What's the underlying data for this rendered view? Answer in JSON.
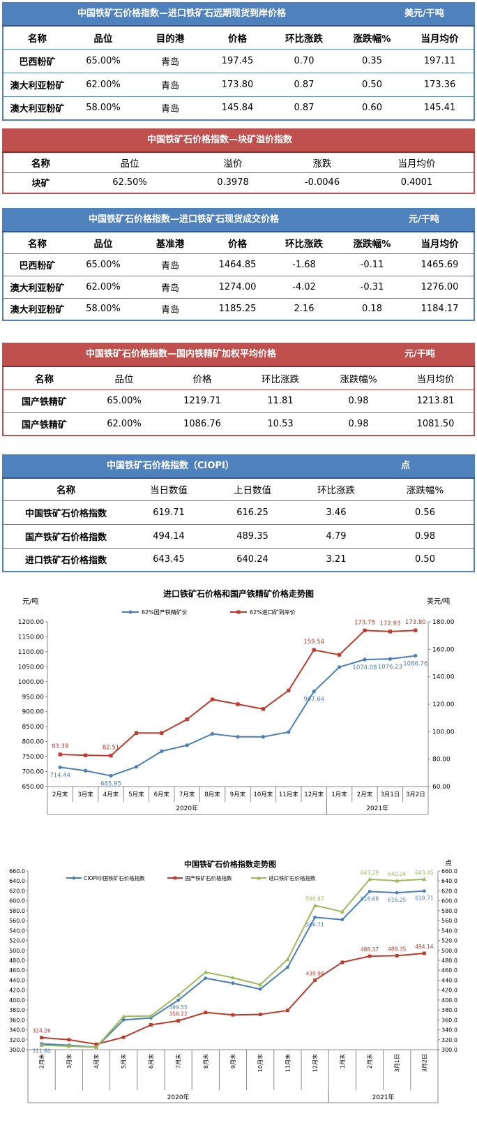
{
  "t1": {
    "title": "中国铁矿石价格指数—进口铁矿石远期现货到岸价格",
    "unit": "美元/干吨",
    "headers": [
      "名称",
      "品位",
      "目的港",
      "价格",
      "环比涨跌",
      "涨跌幅%",
      "当月均价"
    ],
    "rows": [
      [
        "巴西粉矿",
        "65.00%",
        "青岛",
        "197.45",
        "0.70",
        "0.35",
        "197.11"
      ],
      [
        "澳大利亚粉矿",
        "62.00%",
        "青岛",
        "173.80",
        "0.87",
        "0.50",
        "173.36"
      ],
      [
        "澳大利亚粉矿",
        "58.00%",
        "青岛",
        "145.84",
        "0.87",
        "0.60",
        "145.41"
      ]
    ]
  },
  "t2": {
    "title": "中国铁矿石价格指数—块矿溢价指数",
    "headers": [
      "名称",
      "品位",
      "溢价",
      "涨跌",
      "当月均价"
    ],
    "rows": [
      [
        "块矿",
        "62.50%",
        "0.3978",
        "-0.0046",
        "0.4001"
      ]
    ]
  },
  "t3": {
    "title": "中国铁矿石价格指数—进口铁矿石现货成交价格",
    "unit": "元/干吨",
    "headers": [
      "名称",
      "品位",
      "基准港",
      "价格",
      "环比涨跌",
      "涨跌幅%",
      "当月均价"
    ],
    "rows": [
      [
        "巴西粉矿",
        "65.00%",
        "青岛",
        "1464.85",
        "-1.68",
        "-0.11",
        "1465.69"
      ],
      [
        "澳大利亚粉矿",
        "62.00%",
        "青岛",
        "1274.00",
        "-4.02",
        "-0.31",
        "1276.00"
      ],
      [
        "澳大利亚粉矿",
        "58.00%",
        "青岛",
        "1185.25",
        "2.16",
        "0.18",
        "1184.17"
      ]
    ]
  },
  "t4": {
    "title": "中国铁矿石价格指数—国内铁精矿加权平均价格",
    "unit": "元/干吨",
    "headers": [
      "名称",
      "品位",
      "价格",
      "环比涨跌",
      "涨跌幅%",
      "当月均价"
    ],
    "rows": [
      [
        "国产铁精矿",
        "65.00%",
        "1219.71",
        "11.81",
        "0.98",
        "1213.81"
      ],
      [
        "国产铁精矿",
        "62.00%",
        "1086.76",
        "10.53",
        "0.98",
        "1081.50"
      ]
    ]
  },
  "t5": {
    "title": "中国铁矿石价格指数（CIOPI）",
    "unit": "点",
    "headers": [
      "名称",
      "当日数值",
      "上日数值",
      "环比涨跌",
      "涨跌幅%"
    ],
    "rows": [
      [
        "中国铁矿石价格指数",
        "619.71",
        "616.25",
        "3.46",
        "0.56"
      ],
      [
        "国产铁矿石价格指数",
        "494.14",
        "489.35",
        "4.79",
        "0.98"
      ],
      [
        "进口铁矿石价格指数",
        "643.45",
        "640.24",
        "3.21",
        "0.50"
      ]
    ]
  },
  "chart_data": [
    {
      "type": "line",
      "title": "进口铁矿石价格和国产铁精矿价格走势图",
      "ylabel_left": "元/吨",
      "ylabel_right": "美元/吨",
      "ylim_left": [
        650,
        1200
      ],
      "ylim_right": [
        60,
        180
      ],
      "left_ticks": [
        "650.00",
        "700.00",
        "750.00",
        "800.00",
        "850.00",
        "900.00",
        "950.00",
        "1000.00",
        "1050.00",
        "1100.00",
        "1150.00",
        "1200.00"
      ],
      "right_ticks": [
        "60.00",
        "80.00",
        "100.00",
        "120.00",
        "140.00",
        "160.00",
        "180.00"
      ],
      "categories": [
        "2月末",
        "3月末",
        "4月末",
        "5月末",
        "6月末",
        "7月末",
        "8月末",
        "9月末",
        "10月末",
        "11月末",
        "12月末",
        "1月末",
        "2月末",
        "3月1日",
        "3月2日"
      ],
      "groups": [
        {
          "label": "2020年",
          "from": 0,
          "to": 10
        },
        {
          "label": "2021年",
          "from": 11,
          "to": 14
        }
      ],
      "legend_position": "top",
      "series": [
        {
          "name": "62%国产铁精矿价",
          "axis": "left",
          "color": "#4a7ebb",
          "values": [
            714.44,
            703,
            685.95,
            716,
            768,
            788,
            826,
            816,
            816,
            832,
            967.64,
            1049,
            1074.08,
            1076.23,
            1086.76
          ],
          "labels": [
            "714.44",
            "",
            "685.95",
            "",
            "",
            "",
            "",
            "",
            "",
            "",
            "967.64",
            "",
            "1074.08",
            "1076.23",
            "1086.76"
          ]
        },
        {
          "name": "62%进口矿到岸价",
          "axis": "right",
          "color": "#c0392b",
          "values": [
            83.39,
            82.8,
            82.51,
            99,
            99,
            109,
            123.5,
            120,
            116.5,
            130,
            159.54,
            156,
            173.75,
            172.93,
            173.8
          ],
          "labels": [
            "83.39",
            "",
            "82.51",
            "",
            "",
            "",
            "",
            "",
            "",
            "",
            "159.54",
            "",
            "173.75",
            "172.93",
            "173.80"
          ]
        }
      ]
    },
    {
      "type": "line",
      "title": "中国铁矿石价格指数走势图",
      "ylabel_right": "点",
      "ylim": [
        300,
        660
      ],
      "ticks": [
        "300.0",
        "320.0",
        "340.0",
        "360.0",
        "380.0",
        "400.0",
        "420.0",
        "440.0",
        "460.0",
        "480.0",
        "500.0",
        "520.0",
        "540.0",
        "560.0",
        "580.0",
        "600.0",
        "620.0",
        "640.0",
        "660.0"
      ],
      "categories": [
        "2月末",
        "3月末",
        "4月末",
        "5月末",
        "6月末",
        "7月末",
        "8月末",
        "9月末",
        "10月末",
        "11月末",
        "12月末",
        "1月末",
        "2月末",
        "3月1日",
        "3月2日"
      ],
      "groups": [
        {
          "label": "2020年",
          "from": 0,
          "to": 10
        },
        {
          "label": "2021年",
          "from": 11,
          "to": 14
        }
      ],
      "legend_position": "top",
      "series": [
        {
          "name": "CIOPI中国铁矿石价格指数",
          "color": "#4a7ebb",
          "values": [
            311.8,
            309,
            305,
            360,
            364,
            399.55,
            444,
            434,
            422,
            466,
            566.71,
            562,
            618.66,
            616.25,
            619.71
          ],
          "labels": [
            "311.80",
            "",
            "",
            "",
            "",
            "399.55",
            "",
            "",
            "",
            "",
            "566.71",
            "",
            "618.66",
            "616.25",
            "619.71"
          ]
        },
        {
          "name": "国产铁矿石价格指数",
          "color": "#c0392b",
          "values": [
            324.26,
            320,
            311,
            325,
            350,
            358.22,
            375,
            370,
            371,
            379,
            439.98,
            476,
            488.37,
            489.35,
            494.14
          ],
          "labels": [
            "324.26",
            "",
            "",
            "",
            "",
            "358.22",
            "",
            "",
            "",
            "",
            "439.98",
            "",
            "488.37",
            "489.35",
            "494.14"
          ]
        },
        {
          "name": "进口铁矿石价格指数",
          "color": "#9bbb59",
          "values": [
            309,
            307,
            305,
            367,
            368,
            410,
            456,
            445,
            431,
            482,
            590.67,
            578,
            643.29,
            640.24,
            643.45
          ],
          "labels": [
            "",
            "",
            "",
            "",
            "",
            "",
            "",
            "",
            "",
            "",
            "590.67",
            "",
            "643.29",
            "640.24",
            "643.45"
          ]
        }
      ]
    }
  ]
}
